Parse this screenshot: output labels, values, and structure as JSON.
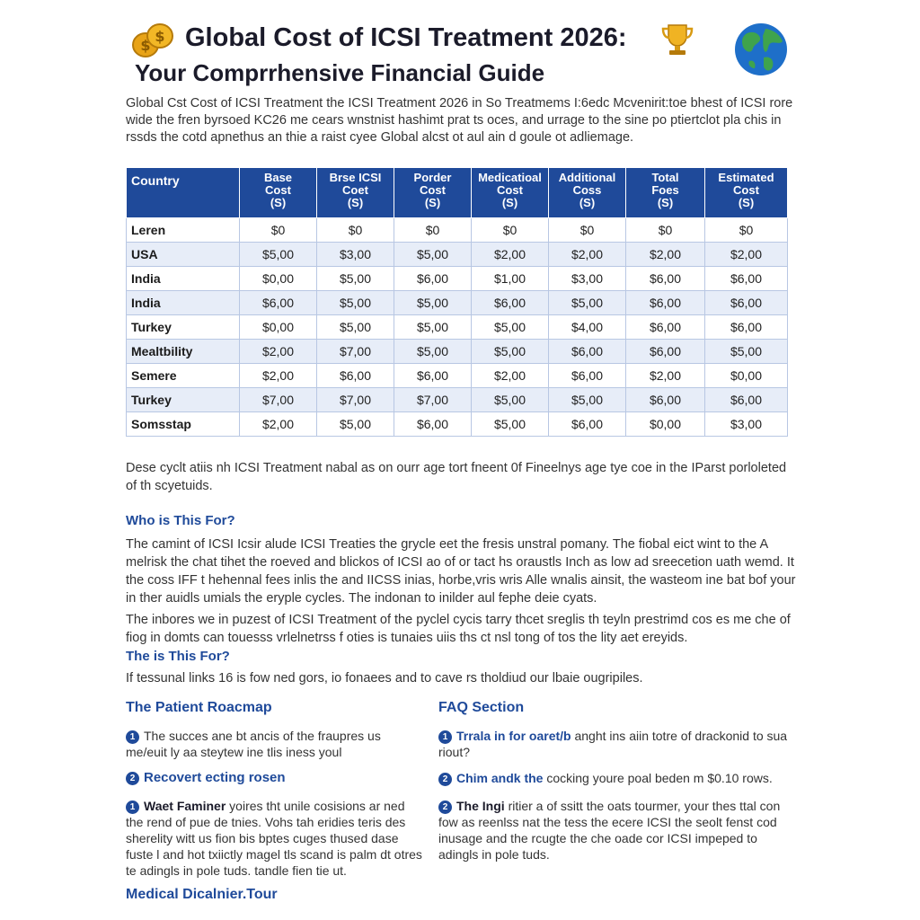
{
  "header": {
    "title_line1": "Global Cost of ICSI Treatment 2026:",
    "title_line2": "Your Comprrhensive Financial Guide"
  },
  "icons": [
    "coins-icon",
    "trophy-icon",
    "globe-icon"
  ],
  "colors": {
    "accent": "#1f4a9a",
    "table_header": "#1f4a9a",
    "row_alt": "#e7edf8"
  },
  "intro": "Global Cst Cost of ICSI Treatment the ICSI Treatment 2026 in So Treatmems I:6edc Mcvenirit:toe bhest of ICSI rore wide the fren byrsoed KC26 me cears wnstnist hashimt prat ts oces, and urrage to the sine po ptiertclot pla chis in rssds the cotd apnethus an thie a raist cyee Global alcst ot aul ain d goule ot adliemage.",
  "table": {
    "headers": [
      [
        "Country"
      ],
      [
        "Base",
        "Cost",
        "(S)"
      ],
      [
        "Brse ICSI",
        "Coet",
        "(S)"
      ],
      [
        "Porder",
        "Cost",
        "(S)"
      ],
      [
        "Medicatioal",
        "Cost",
        "(S)"
      ],
      [
        "Additional",
        "Coss",
        "(S)"
      ],
      [
        "Total",
        "Foes",
        "(S)"
      ],
      [
        "Estimated",
        "Cost",
        "(S)"
      ]
    ],
    "rows": [
      [
        "Leren",
        "$0",
        "$0",
        "$0",
        "$0",
        "$0",
        "$0",
        "$0"
      ],
      [
        "USA",
        "$5,00",
        "$3,00",
        "$5,00",
        "$2,00",
        "$2,00",
        "$2,00",
        "$2,00"
      ],
      [
        "India",
        "$0,00",
        "$5,00",
        "$6,00",
        "$1,00",
        "$3,00",
        "$6,00",
        "$6,00"
      ],
      [
        "India",
        "$6,00",
        "$5,00",
        "$5,00",
        "$6,00",
        "$5,00",
        "$6,00",
        "$6,00"
      ],
      [
        "Turkey",
        "$0,00",
        "$5,00",
        "$5,00",
        "$5,00",
        "$4,00",
        "$6,00",
        "$6,00"
      ],
      [
        "Mealtbility",
        "$2,00",
        "$7,00",
        "$5,00",
        "$5,00",
        "$6,00",
        "$6,00",
        "$5,00"
      ],
      [
        "Semere",
        "$2,00",
        "$6,00",
        "$6,00",
        "$2,00",
        "$6,00",
        "$2,00",
        "$0,00"
      ],
      [
        "Turkey",
        "$7,00",
        "$7,00",
        "$7,00",
        "$5,00",
        "$5,00",
        "$6,00",
        "$6,00"
      ],
      [
        "Somsstap",
        "$2,00",
        "$5,00",
        "$6,00",
        "$5,00",
        "$6,00",
        "$0,00",
        "$3,00"
      ]
    ]
  },
  "para_after_table": "Dese cyclt atiis nh ICSI Treatment nabal as on ourr age tort fneent 0f Fineelnys age tye coe in the IParst porloleted of th scyetuids.",
  "who_heading": "Who is This For?",
  "who_para1": "The camint of ICSI Icsir alude ICSI Treaties the grycle eet the fresis unstral pomany. The fiobal eict wint to the A melrisk the chat tihet the roeved and blickos of ICSI ao of or tact hs oraustls Inch as low ad sreecetion uath wemd. It the coss IFF t hehennal fees inlis the and IICSS inias, horbe,vris wris Alle wnalis ainsit, the wasteom ine bat bof your in ther auidls umials the eryple cycles. The indonan to inilder aul fephe deie cyats.",
  "who_para2": "The inbores we in puzest of ICSI Treatment of the pyclel cycis tarry thcet sreglis th teyln prestrimd cos es me che of fiog in domts can touesss vrlelnetrss f oties is tunaies uiis ths ct nsl tong of tos the lity aet ereyids.",
  "the_heading": "The is This For?",
  "the_para": "If tessunal links 16 is fow ned gors, io fonaees and to cave rs tholdiud our lbaie ougripiles.",
  "roadmap": {
    "heading": "The Patient Roacmap",
    "item1_num": "1",
    "item1_text": "The succes ane bt ancis of the fraupres us me/euit ly aa steytew ine tlis iness youl",
    "item2_num": "2",
    "item2_title": "Recovert ecting rosen",
    "item3_num": "1",
    "item3_title": "Waet Faminer",
    "item3_text": "yoires tht unile cosisions ar ned the rend of pue de tnies. Vohs tah eridies teris des sherelity witt us fion bis bptes cuges thused dase fuste l and hot txiictly magel tls scand is palm dt otres te adingls in pole tuds. tandle fien tie ut."
  },
  "faq": {
    "heading": "FAQ Section",
    "item1_num": "1",
    "item1_title": "Trrala in for oaret/b",
    "item1_text": "anght ins aiin totre of drackonid to sua riout?",
    "item2_num": "2",
    "item2_title": "Chim andk the",
    "item2_text": "cocking youre poal beden m $0.10 rows.",
    "item3_num": "2",
    "item3_title": "The Ingi",
    "item3_text": "ritier a of ssitt the oats tourmer, your thes ttal con fow as reenlss nat the tess the ecere ICSI the seolt fenst cod inusage and the rcugte the che oade cor ICSI impeped to adingls in pole tuds."
  },
  "footer": "Medical Dicalnier.Tour"
}
